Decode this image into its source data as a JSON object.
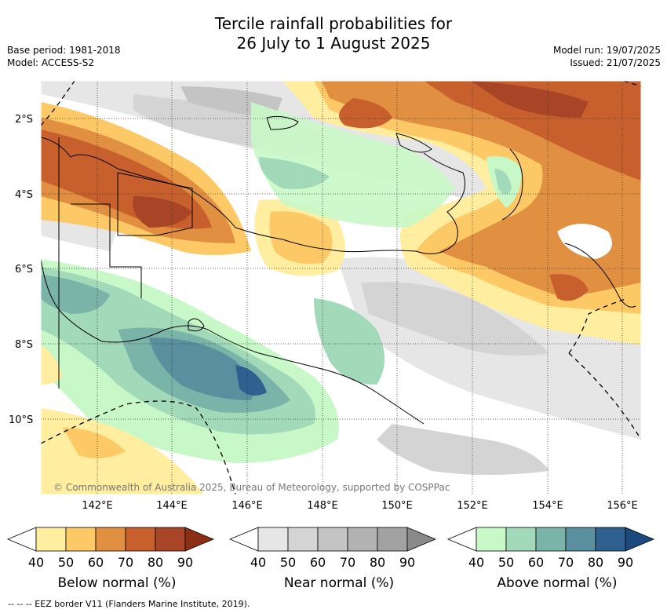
{
  "title": "Tercile rainfall probabilities for\n26 July to 1 August 2025",
  "meta": {
    "base_period": "Base period: 1981-2018",
    "model": "Model: ACCESS-S2",
    "model_run": "Model run: 19/07/2025",
    "issued": "Issued: 21/07/2025"
  },
  "axes": {
    "lat_labels": [
      "2°S",
      "4°S",
      "6°S",
      "8°S",
      "10°S"
    ],
    "lon_labels": [
      "142°E",
      "144°E",
      "146°E",
      "148°E",
      "150°E",
      "152°E",
      "154°E",
      "156°E"
    ]
  },
  "copyright": "© Commonwealth of Australia 2025, Bureau of Meteorology, supported by COSPPac",
  "colorbars": [
    {
      "label": "Below normal (%)",
      "ticks": [
        "40",
        "50",
        "60",
        "70",
        "80",
        "90"
      ],
      "colors": [
        "#ffeea0",
        "#fdc966",
        "#e09040",
        "#c8602e",
        "#a84526",
        "#8a2e14"
      ]
    },
    {
      "label": "Near normal (%)",
      "ticks": [
        "40",
        "50",
        "60",
        "70",
        "80",
        "90"
      ],
      "colors": [
        "#e6e6e6",
        "#d4d4d4",
        "#c4c4c4",
        "#b2b2b2",
        "#a2a2a2",
        "#8a8a8a"
      ]
    },
    {
      "label": "Above normal (%)",
      "ticks": [
        "40",
        "50",
        "60",
        "70",
        "80",
        "90"
      ],
      "colors": [
        "#c8f8c8",
        "#a2d9b8",
        "#7ab4a8",
        "#5a909e",
        "#2f6090",
        "#1c4a7e"
      ]
    }
  ],
  "footer": "--  --  -- EEZ border V11 (Flanders Marine Institute, 2019)."
}
